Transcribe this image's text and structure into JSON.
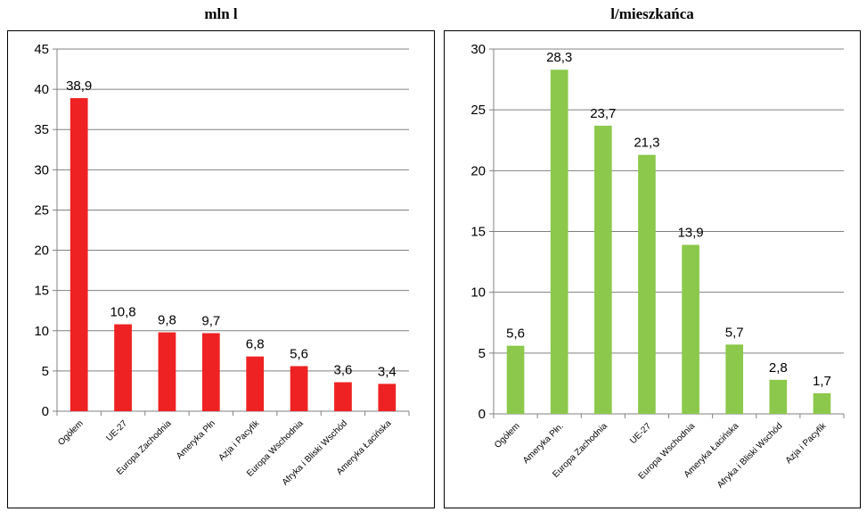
{
  "chart_data": [
    {
      "type": "bar",
      "title": "mln l",
      "categories": [
        "Ogółem",
        "UE-27",
        "Europa Zachodnia",
        "Ameryka Płn",
        "Azja i Pacyfik",
        "Europa Wschodnia",
        "Afryka i Bliski Wschód",
        "Ameryka Łacińska"
      ],
      "values": [
        38.9,
        10.8,
        9.8,
        9.7,
        6.8,
        5.6,
        3.6,
        3.4
      ],
      "value_labels": [
        "38,9",
        "10,8",
        "9,8",
        "9,7",
        "6,8",
        "5,6",
        "3,6",
        "3,4"
      ],
      "ylim": [
        0,
        45
      ],
      "yticks": [
        0,
        5,
        10,
        15,
        20,
        25,
        30,
        35,
        40,
        45
      ],
      "grid": true,
      "color": "#ee2222"
    },
    {
      "type": "bar",
      "title": "l/mieszkańca",
      "categories": [
        "Ogółem",
        "Ameryka Płn.",
        "Europa Zachodnia",
        "UE-27",
        "Europa Wschodnia",
        "Ameryka Łacińska",
        "Afryka i Bliski Wschód",
        "Azja i Pacyfik"
      ],
      "values": [
        5.6,
        28.3,
        23.7,
        21.3,
        13.9,
        5.7,
        2.8,
        1.7
      ],
      "value_labels": [
        "5,6",
        "28,3",
        "23,7",
        "21,3",
        "13,9",
        "5,7",
        "2,8",
        "1,7"
      ],
      "ylim": [
        0,
        30
      ],
      "yticks": [
        0,
        5,
        10,
        15,
        20,
        25,
        30
      ],
      "grid": true,
      "color": "#8cc84b"
    }
  ]
}
